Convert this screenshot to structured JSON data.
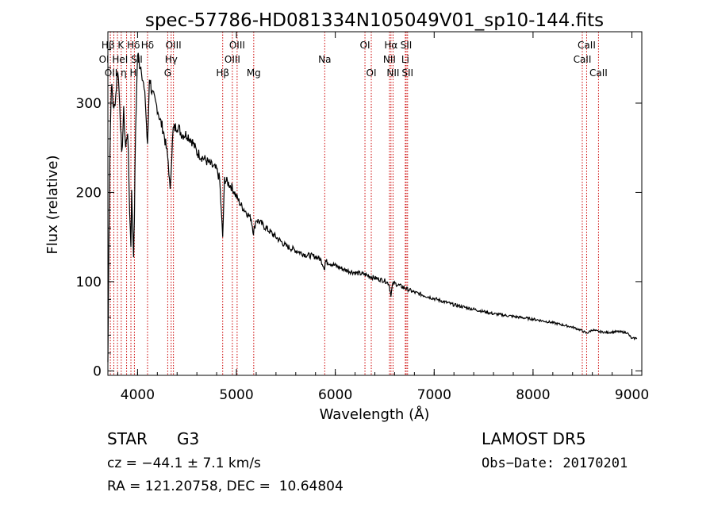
{
  "chart_data": {
    "type": "line",
    "title": "spec-57786-HD081334N105049V01_sp10-144.fits",
    "xlabel": "Wavelength (Å)",
    "ylabel": "Flux (relative)",
    "xlim": [
      3700,
      9100
    ],
    "ylim": [
      -5,
      380
    ],
    "x_ticks": [
      4000,
      5000,
      6000,
      7000,
      8000,
      9000
    ],
    "y_ticks": [
      0,
      100,
      200,
      300
    ],
    "series": [
      {
        "x": [
          3700,
          3710,
          3720,
          3730,
          3740,
          3760,
          3780,
          3800,
          3820,
          3840,
          3860,
          3880,
          3900,
          3920,
          3933,
          3940,
          3960,
          3968,
          3980,
          4000,
          4020,
          4040,
          4060,
          4080,
          4101,
          4120,
          4150,
          4180,
          4200,
          4230,
          4260,
          4290,
          4310,
          4330,
          4340,
          4360,
          4400,
          4450,
          4500,
          4550,
          4600,
          4650,
          4700,
          4750,
          4800,
          4830,
          4861,
          4880,
          4920,
          4960,
          5000,
          5050,
          5100,
          5150,
          5172,
          5183,
          5200,
          5250,
          5300,
          5400,
          5500,
          5600,
          5700,
          5800,
          5850,
          5893,
          5900,
          6000,
          6100,
          6200,
          6300,
          6400,
          6500,
          6540,
          6563,
          6580,
          6600,
          6700,
          6800,
          7000,
          7200,
          7400,
          7600,
          7800,
          8000,
          8200,
          8400,
          8498,
          8542,
          8600,
          8662,
          8750,
          8850,
          8950,
          9000,
          9050
        ],
        "y": [
          10,
          140,
          240,
          300,
          320,
          290,
          310,
          340,
          300,
          240,
          290,
          250,
          270,
          180,
          140,
          200,
          130,
          170,
          270,
          355,
          345,
          340,
          320,
          300,
          250,
          330,
          310,
          300,
          295,
          280,
          270,
          250,
          235,
          200,
          230,
          270,
          275,
          265,
          265,
          258,
          245,
          240,
          235,
          230,
          225,
          215,
          150,
          215,
          210,
          205,
          195,
          185,
          178,
          170,
          155,
          160,
          170,
          165,
          160,
          150,
          140,
          135,
          130,
          128,
          125,
          115,
          123,
          118,
          113,
          110,
          108,
          104,
          101,
          98,
          85,
          97,
          98,
          93,
          88,
          81,
          74,
          69,
          64,
          61,
          58,
          54,
          49,
          45,
          42,
          46,
          44,
          43,
          44,
          43,
          36,
          37
        ]
      }
    ],
    "annotations": [
      {
        "label": "Hδ",
        "x": 4101,
        "row": 1
      },
      {
        "label": "Hγ",
        "x": 4340,
        "row": 2
      },
      {
        "label": "G",
        "x": 4305,
        "row": 3
      },
      {
        "label": "OIII",
        "x": 4363,
        "row": 1
      },
      {
        "label": "Hβ",
        "x": 4861,
        "row": 3
      },
      {
        "label": "OIII",
        "x": 4959,
        "row": 2
      },
      {
        "label": "OIII",
        "x": 5007,
        "row": 1
      },
      {
        "label": "Mg",
        "x": 5175,
        "row": 3
      },
      {
        "label": "Na",
        "x": 5893,
        "row": 2
      },
      {
        "label": "OI",
        "x": 6300,
        "row": 1
      },
      {
        "label": "OI",
        "x": 6364,
        "row": 3
      },
      {
        "label": "Hα",
        "x": 6563,
        "row": 1
      },
      {
        "label": "NII",
        "x": 6548,
        "row": 2
      },
      {
        "label": "NII",
        "x": 6584,
        "row": 3
      },
      {
        "label": "SII",
        "x": 6717,
        "row": 1
      },
      {
        "label": "Li",
        "x": 6708,
        "row": 2
      },
      {
        "label": "SII",
        "x": 6731,
        "row": 3
      },
      {
        "label": "CaII",
        "x": 8498,
        "row": 2
      },
      {
        "label": "CaII",
        "x": 8542,
        "row": 1
      },
      {
        "label": "CaII",
        "x": 8662,
        "row": 3
      }
    ],
    "crowded_label_rows": [
      "Hβ K Hδ",
      "OI HeI SII",
      "OII η H"
    ],
    "grid": false,
    "line_color": "#000000",
    "marker_color": "#cc0000"
  },
  "info": {
    "object_class": "STAR",
    "subclass": "G3",
    "survey": "LAMOST DR5",
    "velocity": "cz = −44.1 ± 7.1 km/s",
    "obs_date": "Obs−Date: 20170201",
    "coords": "RA = 121.20758, DEC =  10.64804"
  }
}
